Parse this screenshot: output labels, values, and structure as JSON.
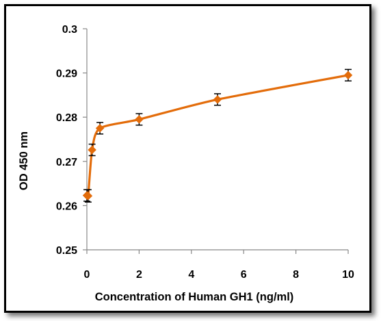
{
  "chart_data": {
    "type": "scatter",
    "xlabel": "Concentration of Human GH1 (ng/ml)",
    "ylabel": "OD  450 nm",
    "xlim": [
      0,
      10
    ],
    "ylim": [
      0.25,
      0.3
    ],
    "xticks": [
      0,
      2,
      4,
      6,
      8,
      10
    ],
    "yticks": [
      0.25,
      0.26,
      0.27,
      0.28,
      0.29,
      0.3
    ],
    "xtick_labels": [
      "0",
      "2",
      "4",
      "6",
      "8",
      "10"
    ],
    "ytick_labels": [
      "0.25",
      "0.26",
      "0.27",
      "0.28",
      "0.29",
      "0.3"
    ],
    "smooth_line": true,
    "marker": "diamond",
    "grid": false,
    "color": "#E36C0A",
    "series": [
      {
        "x": [
          0,
          0.05,
          0.2,
          0.5,
          2,
          5,
          10
        ],
        "y": [
          0.2623,
          0.2622,
          0.2726,
          0.2775,
          0.2795,
          0.284,
          0.2895
        ],
        "yerr": [
          0.0013,
          0.0014,
          0.0013,
          0.0013,
          0.0013,
          0.0013,
          0.0013
        ]
      }
    ]
  }
}
